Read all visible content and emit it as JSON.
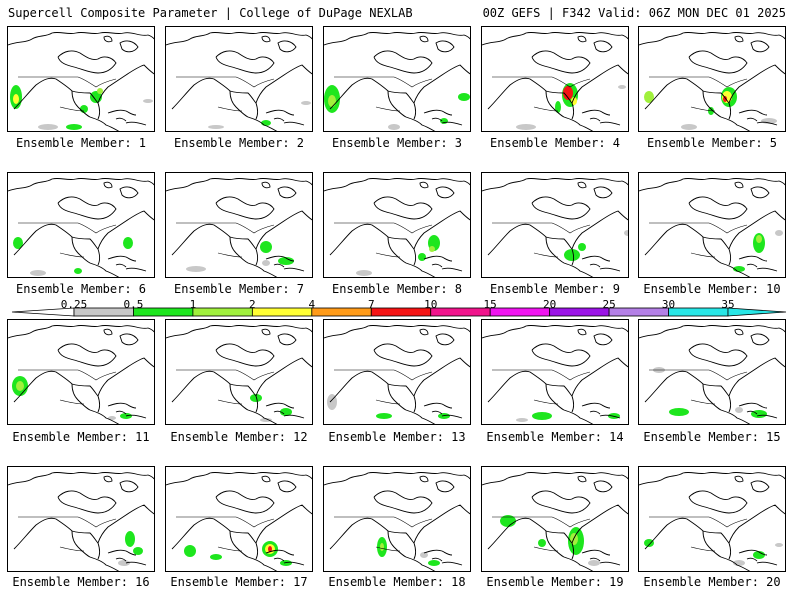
{
  "header": {
    "left": "Supercell Composite Parameter | College of DuPage NEXLAB",
    "right": "00Z GEFS | F342 Valid: 06Z MON DEC 01 2025"
  },
  "members": [
    {
      "label": "Ensemble Member: 1"
    },
    {
      "label": "Ensemble Member: 2"
    },
    {
      "label": "Ensemble Member: 3"
    },
    {
      "label": "Ensemble Member: 4"
    },
    {
      "label": "Ensemble Member: 5"
    },
    {
      "label": "Ensemble Member: 6"
    },
    {
      "label": "Ensemble Member: 7"
    },
    {
      "label": "Ensemble Member: 8"
    },
    {
      "label": "Ensemble Member: 9"
    },
    {
      "label": "Ensemble Member: 10"
    },
    {
      "label": "Ensemble Member: 11"
    },
    {
      "label": "Ensemble Member: 12"
    },
    {
      "label": "Ensemble Member: 13"
    },
    {
      "label": "Ensemble Member: 14"
    },
    {
      "label": "Ensemble Member: 15"
    },
    {
      "label": "Ensemble Member: 16"
    },
    {
      "label": "Ensemble Member: 17"
    },
    {
      "label": "Ensemble Member: 18"
    },
    {
      "label": "Ensemble Member: 19"
    },
    {
      "label": "Ensemble Member: 20"
    }
  ],
  "colorbar": {
    "ticks": [
      "0.25",
      "0.5",
      "1",
      "2",
      "4",
      "7",
      "10",
      "15",
      "20",
      "25",
      "30",
      "35"
    ],
    "colors": [
      "#ffffff",
      "#c8c8c8",
      "#1ee61e",
      "#a0f03c",
      "#ffff32",
      "#ff9b19",
      "#f51414",
      "#f0148c",
      "#f014f0",
      "#9b14e6",
      "#b480e6",
      "#28e6e6"
    ]
  }
}
